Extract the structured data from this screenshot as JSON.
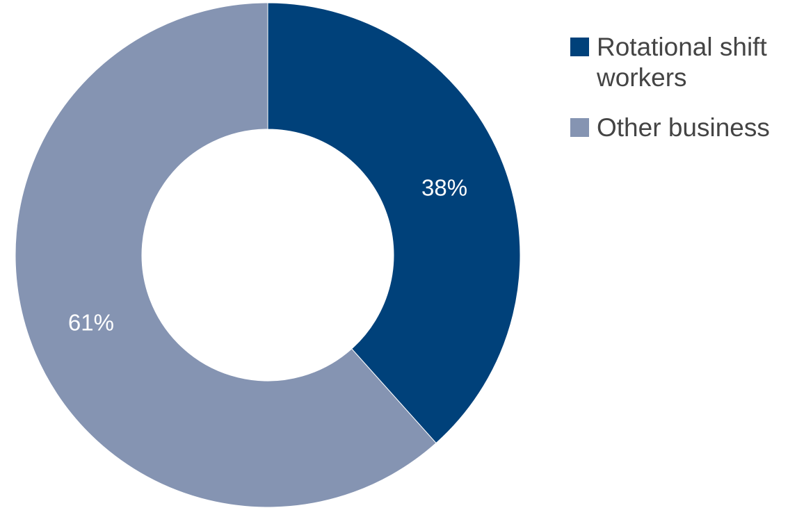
{
  "chart_data": {
    "type": "pie",
    "donut": true,
    "categories": [
      "Rotational shift workers",
      "Other business"
    ],
    "values": [
      38,
      61
    ],
    "data_labels": [
      "38%",
      "61%"
    ],
    "colors": [
      "#00417a",
      "#8594b2"
    ],
    "label_colors": [
      "#ffffff",
      "#ffffff"
    ],
    "start_angle_deg": 0,
    "direction": "clockwise",
    "legend_position": "top-right",
    "legend": [
      {
        "label": "Rotational shift workers",
        "color": "#00417a"
      },
      {
        "label": "Other business",
        "color": "#8594b2"
      }
    ]
  }
}
